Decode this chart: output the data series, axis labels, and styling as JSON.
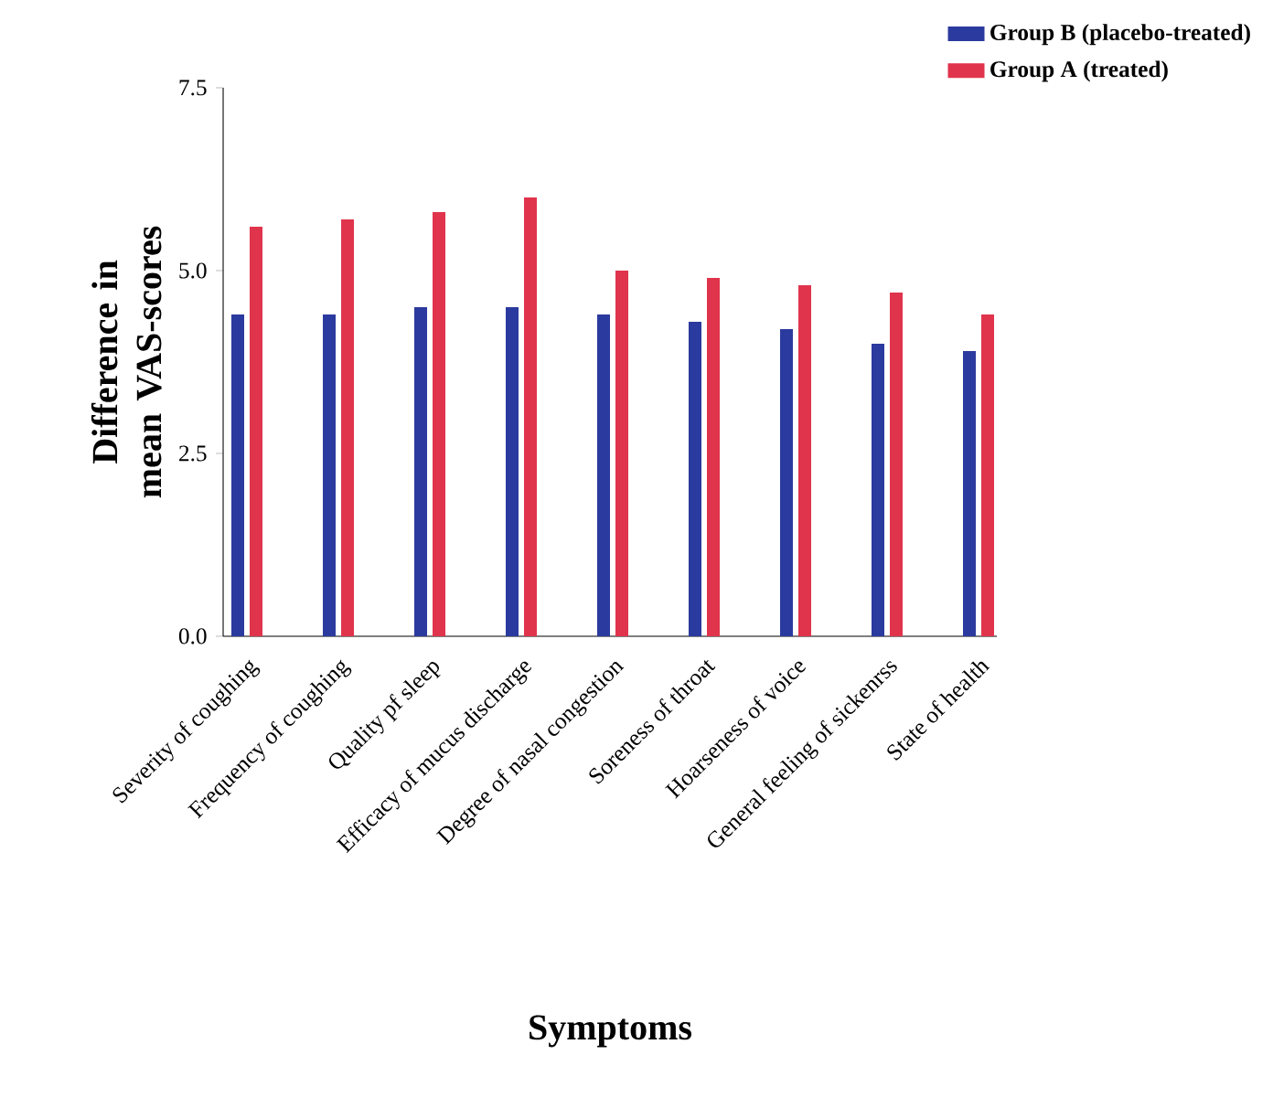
{
  "chart_data": {
    "type": "bar",
    "xlabel": "Symptoms",
    "ylabel": "Difference in mean VAS-scores",
    "categories": [
      "Severity of coughing",
      "Frequency of coughing",
      "Quality pf sleep",
      "Efficacy of mucus discharge",
      "Degree of nasal congestion",
      "Soreness of throat",
      "Hoarseness of voice",
      "General feeling of sickenrss",
      "State of health"
    ],
    "series": [
      {
        "name": "Group B (placebo-treated)",
        "color": "#2b3a9e",
        "values": [
          4.4,
          4.4,
          4.5,
          4.5,
          4.4,
          4.3,
          4.2,
          4.0,
          3.9
        ]
      },
      {
        "name": "Group A (treated)",
        "color": "#e0344c",
        "values": [
          5.6,
          5.7,
          5.8,
          6.0,
          5.0,
          4.9,
          4.8,
          4.7,
          4.4
        ]
      }
    ],
    "ylim": [
      0,
      7.5
    ],
    "yticks": [
      {
        "value": 0,
        "label": "0.0"
      },
      2.5,
      {
        "value": 5,
        "label": "5.0"
      },
      7.5
    ],
    "legend": "top right"
  }
}
